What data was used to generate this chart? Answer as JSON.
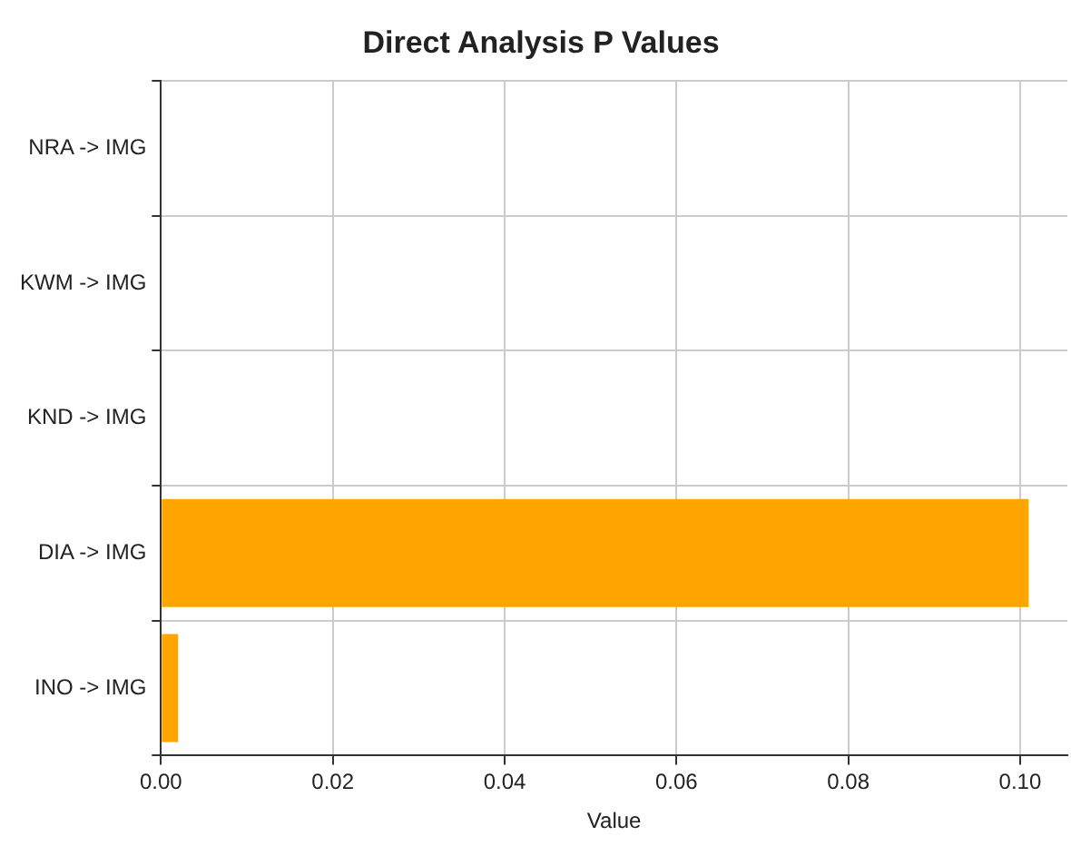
{
  "chart_data": {
    "type": "bar",
    "orientation": "horizontal",
    "title": "Direct Analysis P Values",
    "xlabel": "Value",
    "categories": [
      "NRA -> IMG",
      "KWM -> IMG",
      "KND -> IMG",
      "DIA -> IMG",
      "INO -> IMG"
    ],
    "values": [
      0,
      0,
      0,
      0.101,
      0.002
    ],
    "color": "#ffa500",
    "xlim": [
      0,
      0.1055
    ],
    "xticks": [
      {
        "value": 0,
        "label": "0.00"
      },
      {
        "value": 0.02,
        "label": "0.02"
      },
      {
        "value": 0.04,
        "label": "0.04"
      },
      {
        "value": 0.06,
        "label": "0.06"
      },
      {
        "value": 0.08,
        "label": "0.08"
      },
      {
        "value": 0.1,
        "label": "0.10"
      }
    ],
    "grid": true
  }
}
